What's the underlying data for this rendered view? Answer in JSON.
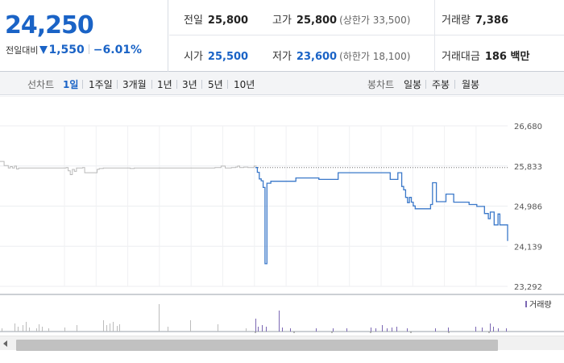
{
  "quote": {
    "price": "24,250",
    "change_label": "전일대비",
    "change_amount": "1,550",
    "change_rate": "−6.01%",
    "direction_icon": "down-triangle-icon",
    "down_color": "#1a63c6"
  },
  "stats": {
    "prev_close": {
      "label": "전일",
      "value": "25,800"
    },
    "high": {
      "label": "고가",
      "value": "25,800",
      "sub": "(상한가 33,500)"
    },
    "volume": {
      "label": "거래량",
      "value": "7,386"
    },
    "open": {
      "label": "시가",
      "value": "25,500"
    },
    "low": {
      "label": "저가",
      "value": "23,600",
      "sub": "(하한가 18,100)"
    },
    "trade_value": {
      "label": "거래대금",
      "value": "186 백만"
    }
  },
  "toolbar": {
    "line_chart_label": "선차트",
    "periods": [
      "1일",
      "1주일",
      "3개월",
      "1년",
      "3년",
      "5년",
      "10년"
    ],
    "active_period": "1일",
    "candle_chart_label": "봉차트",
    "candle_periods": [
      "일봉",
      "주봉",
      "월봉"
    ]
  },
  "chart_data": {
    "type": "line",
    "series": [
      {
        "role": "previous-day",
        "color": "#b9b9b9",
        "values": [
          25930,
          25930,
          25840,
          25840,
          25790,
          25820,
          25790,
          25830,
          25770,
          25790,
          25790,
          25790,
          25790,
          25790,
          25790,
          25790,
          25790,
          25790,
          25790,
          25790,
          25790,
          25790,
          25790,
          25790,
          25790,
          25790,
          25790,
          25790,
          25790,
          25790,
          25790,
          25790,
          25800,
          25730,
          25650,
          25760,
          25720,
          25790,
          25790,
          25790,
          25800,
          25690,
          25690,
          25690,
          25690,
          25690,
          25690,
          25760,
          25780,
          25780,
          25790,
          25790,
          25790,
          25790,
          25790,
          25790,
          25790,
          25790,
          25790,
          25790,
          25790,
          25790,
          25790,
          25780,
          25780,
          25790,
          25790,
          25790,
          25790,
          25790,
          25790,
          25790,
          25790,
          25790,
          25790,
          25790,
          25790,
          25790,
          25790,
          25790,
          25790,
          25790,
          25790,
          25790,
          25790,
          25790,
          25790,
          25790,
          25790,
          25790,
          25790,
          25790,
          25790,
          25790,
          25790,
          25790,
          25790,
          25790,
          25790,
          25790,
          25790,
          25790,
          25790,
          25790,
          25800,
          25800,
          25800,
          25830,
          25830,
          25790,
          25790,
          25790,
          25800,
          25800,
          25810,
          25830,
          25800,
          25800,
          25810,
          25810,
          25800,
          25800,
          25800,
          25830,
          25820
        ]
      },
      {
        "role": "today",
        "color": "#3a78c9",
        "values": [
          25800,
          25700,
          25560,
          25520,
          25380,
          23770,
          25470,
          25470,
          25510,
          25510,
          25510,
          25510,
          25510,
          25510,
          25510,
          25510,
          25510,
          25510,
          25510,
          25510,
          25510,
          25580,
          25580,
          25580,
          25580,
          25580,
          25580,
          25580,
          25580,
          25580,
          25580,
          25580,
          25580,
          25550,
          25550,
          25550,
          25550,
          25550,
          25550,
          25550,
          25550,
          25550,
          25550,
          25690,
          25690,
          25690,
          25690,
          25690,
          25690,
          25690,
          25690,
          25690,
          25690,
          25690,
          25690,
          25690,
          25690,
          25690,
          25690,
          25690,
          25690,
          25690,
          25690,
          25690,
          25690,
          25690,
          25690,
          25690,
          25690,
          25690,
          25550,
          25550,
          25550,
          25550,
          25690,
          25690,
          25400,
          25330,
          25170,
          25060,
          25170,
          25070,
          24990,
          24930,
          24930,
          24930,
          24930,
          24930,
          24930,
          24930,
          24930,
          25020,
          25480,
          25480,
          25080,
          25080,
          25080,
          25080,
          25080,
          25240,
          25240,
          25240,
          25240,
          25070,
          25070,
          25070,
          25070,
          25070,
          25070,
          25070,
          25070,
          25020,
          25020,
          25020,
          25020,
          24980,
          24980,
          24980,
          24980,
          24830,
          24830,
          24720,
          24860,
          24860,
          24590,
          24590,
          24820,
          24590,
          24590,
          24590,
          24590,
          24250
        ]
      }
    ],
    "reference_price": 25800,
    "yticks": [
      "26,680",
      "25,833",
      "24,986",
      "24,139",
      "23,292"
    ],
    "yrange": [
      23292,
      26680
    ],
    "volume_legend": "거래량",
    "volume_color": "#7b67b3",
    "grid": true
  },
  "scrollbar": {
    "left_arrow_icon": "chevron-left-icon"
  }
}
